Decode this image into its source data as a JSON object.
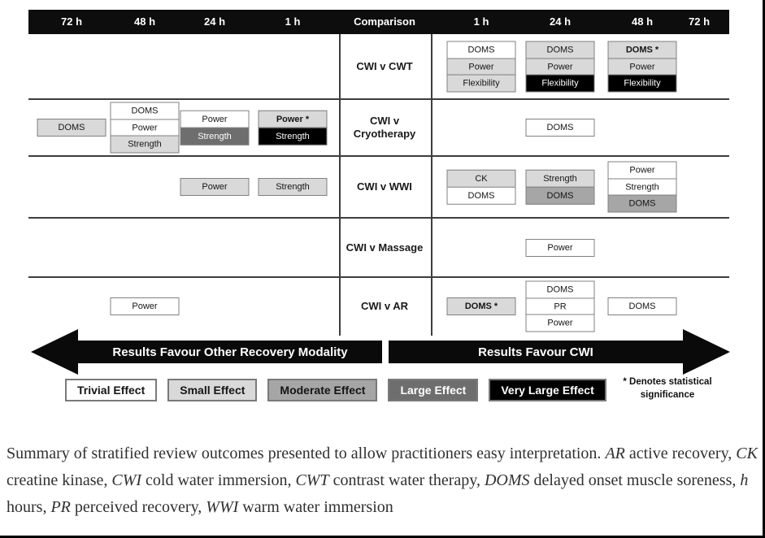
{
  "figure": {
    "header": {
      "left_times": [
        "72 h",
        "48 h",
        "24 h",
        "1 h"
      ],
      "comparison_label": "Comparison",
      "right_times": [
        "1 h",
        "24 h",
        "48 h",
        "72 h"
      ]
    },
    "effect_colors": {
      "trivial": "#ffffff",
      "small": "#d9d9d9",
      "moderate": "#a6a6a6",
      "large": "#6e6e6e",
      "very_large": "#000000"
    },
    "rows": [
      {
        "comparison": "CWI v CWT",
        "stacks": [
          {
            "column": "right-1h",
            "boxes": [
              {
                "label": "DOMS",
                "effect": "trivial"
              },
              {
                "label": "Power",
                "effect": "small"
              },
              {
                "label": "Flexibility",
                "effect": "small"
              }
            ]
          },
          {
            "column": "right-24h",
            "boxes": [
              {
                "label": "DOMS",
                "effect": "small"
              },
              {
                "label": "Power",
                "effect": "small"
              },
              {
                "label": "Flexibility",
                "effect": "very_large"
              }
            ]
          },
          {
            "column": "right-48h",
            "boxes": [
              {
                "label": "DOMS *",
                "effect": "small",
                "bold": true
              },
              {
                "label": "Power",
                "effect": "small"
              },
              {
                "label": "Flexibility",
                "effect": "very_large"
              }
            ]
          }
        ]
      },
      {
        "comparison": "CWI v Cryotherapy",
        "stacks": [
          {
            "column": "left-72h",
            "boxes": [
              {
                "label": "DOMS",
                "effect": "small"
              }
            ]
          },
          {
            "column": "left-48h",
            "boxes": [
              {
                "label": "DOMS",
                "effect": "trivial"
              },
              {
                "label": "Power",
                "effect": "trivial"
              },
              {
                "label": "Strength",
                "effect": "small"
              }
            ]
          },
          {
            "column": "left-24h",
            "boxes": [
              {
                "label": "Power",
                "effect": "trivial"
              },
              {
                "label": "Strength",
                "effect": "large"
              }
            ]
          },
          {
            "column": "left-1h",
            "boxes": [
              {
                "label": "Power *",
                "effect": "small",
                "bold": true
              },
              {
                "label": "Strength",
                "effect": "very_large"
              }
            ]
          },
          {
            "column": "right-24h",
            "boxes": [
              {
                "label": "DOMS",
                "effect": "trivial"
              }
            ]
          }
        ]
      },
      {
        "comparison": "CWI v WWI",
        "stacks": [
          {
            "column": "left-24h",
            "boxes": [
              {
                "label": "Power",
                "effect": "small"
              }
            ]
          },
          {
            "column": "left-1h",
            "boxes": [
              {
                "label": "Strength",
                "effect": "small"
              }
            ]
          },
          {
            "column": "right-1h",
            "boxes": [
              {
                "label": "CK",
                "effect": "small"
              },
              {
                "label": "DOMS",
                "effect": "trivial"
              }
            ]
          },
          {
            "column": "right-24h",
            "boxes": [
              {
                "label": "Strength",
                "effect": "small"
              },
              {
                "label": "DOMS",
                "effect": "moderate"
              }
            ]
          },
          {
            "column": "right-48h",
            "boxes": [
              {
                "label": "Power",
                "effect": "trivial"
              },
              {
                "label": "Strength",
                "effect": "trivial"
              },
              {
                "label": "DOMS",
                "effect": "moderate"
              }
            ]
          }
        ]
      },
      {
        "comparison": "CWI v Massage",
        "stacks": [
          {
            "column": "right-24h",
            "boxes": [
              {
                "label": "Power",
                "effect": "trivial"
              }
            ]
          }
        ]
      },
      {
        "comparison": "CWI v AR",
        "stacks": [
          {
            "column": "left-48h",
            "boxes": [
              {
                "label": "Power",
                "effect": "trivial"
              }
            ]
          },
          {
            "column": "right-1h",
            "boxes": [
              {
                "label": "DOMS *",
                "effect": "small",
                "bold": true
              }
            ]
          },
          {
            "column": "right-24h",
            "boxes": [
              {
                "label": "DOMS",
                "effect": "trivial"
              },
              {
                "label": "PR",
                "effect": "trivial"
              },
              {
                "label": "Power",
                "effect": "trivial"
              }
            ]
          },
          {
            "column": "right-48h",
            "boxes": [
              {
                "label": "DOMS",
                "effect": "trivial"
              }
            ]
          }
        ]
      }
    ],
    "arrows": {
      "left": "Results Favour Other Recovery Modality",
      "right": "Results Favour CWI"
    },
    "legend": [
      {
        "label": "Trivial Effect",
        "effect": "trivial"
      },
      {
        "label": "Small Effect",
        "effect": "small"
      },
      {
        "label": "Moderate Effect",
        "effect": "moderate"
      },
      {
        "label": "Large Effect",
        "effect": "large"
      },
      {
        "label": "Very Large Effect",
        "effect": "very_large"
      }
    ],
    "significance_note": "* Denotes statistical significance"
  },
  "caption": {
    "segments": [
      {
        "t": "Summary of stratified review outcomes presented to allow practitioners easy interpretation. ",
        "i": false
      },
      {
        "t": "AR",
        "i": true
      },
      {
        "t": " active recovery, ",
        "i": false
      },
      {
        "t": "CK",
        "i": true
      },
      {
        "t": " creatine kinase, ",
        "i": false
      },
      {
        "t": "CWI",
        "i": true
      },
      {
        "t": " cold water immersion, ",
        "i": false
      },
      {
        "t": "CWT",
        "i": true
      },
      {
        "t": " contrast water therapy, ",
        "i": false
      },
      {
        "t": "DOMS",
        "i": true
      },
      {
        "t": " delayed onset muscle soreness, ",
        "i": false
      },
      {
        "t": "h",
        "i": true
      },
      {
        "t": " hours, ",
        "i": false
      },
      {
        "t": "PR",
        "i": true
      },
      {
        "t": " perceived recovery, ",
        "i": false
      },
      {
        "t": "WWI",
        "i": true
      },
      {
        "t": " warm water immersion",
        "i": false
      }
    ]
  }
}
